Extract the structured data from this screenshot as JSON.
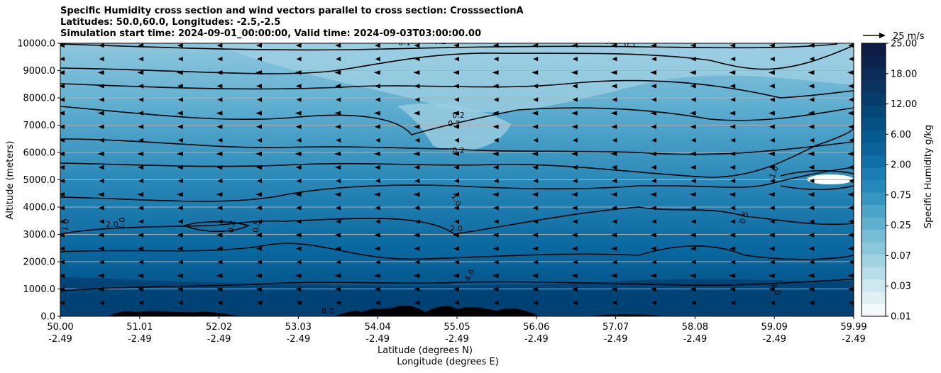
{
  "chart_data": {
    "type": "heatmap",
    "title": [
      "Specific Humidity cross section and wind vectors parallel to cross section: CrosssectionA",
      "Latitudes: 50.0,60.0, Longitudes: -2.5,-2.5",
      "Simulation start time: 2024-09-01_00:00:00, Valid time: 2024-09-03T03:00:00.00"
    ],
    "ylabel": "Altitude (meters)",
    "xlabel": "Latitude (degrees N)",
    "xlabel2": "Longitude (degrees E)",
    "ylim": [
      0,
      10000
    ],
    "yticks": [
      "0.0",
      "1000.0",
      "2000.0",
      "3000.0",
      "4000.0",
      "5000.0",
      "6000.0",
      "7000.0",
      "8000.0",
      "9000.0",
      "10000.0"
    ],
    "xlim": [
      50.0,
      59.99
    ],
    "xticks_lat": [
      "50.00",
      "51.01",
      "52.02",
      "53.03",
      "54.04",
      "55.05",
      "56.06",
      "57.07",
      "58.08",
      "59.09",
      "59.99"
    ],
    "xticks_lon": [
      "-2.49",
      "-2.49",
      "-2.49",
      "-2.49",
      "-2.49",
      "-2.49",
      "-2.49",
      "-2.49",
      "-2.49",
      "-2.49",
      "-2.49"
    ],
    "grid": "horizontal",
    "colorbar": {
      "label": "Specific Humidity g/kg",
      "tick_labels": [
        "0.01",
        "0.03",
        "0.07",
        "0.25",
        "0.75",
        "2.00",
        "6.00",
        "12.00",
        "18.00",
        "25.00"
      ]
    },
    "contour_labels": [
      "0.1",
      "0.2",
      "0.5",
      "1.0",
      "2.0",
      "4.0",
      "8.0"
    ],
    "quiver_key": "25 m/s",
    "wind_direction": "southward (toward lower latitude)"
  },
  "colors": {
    "low_humidity": "#dff0f4",
    "mid_humidity": "#5aaccf",
    "high_humidity": "#004a7d",
    "max_humidity": "#08144f",
    "contour": "#000000",
    "terrain": "#000000"
  }
}
